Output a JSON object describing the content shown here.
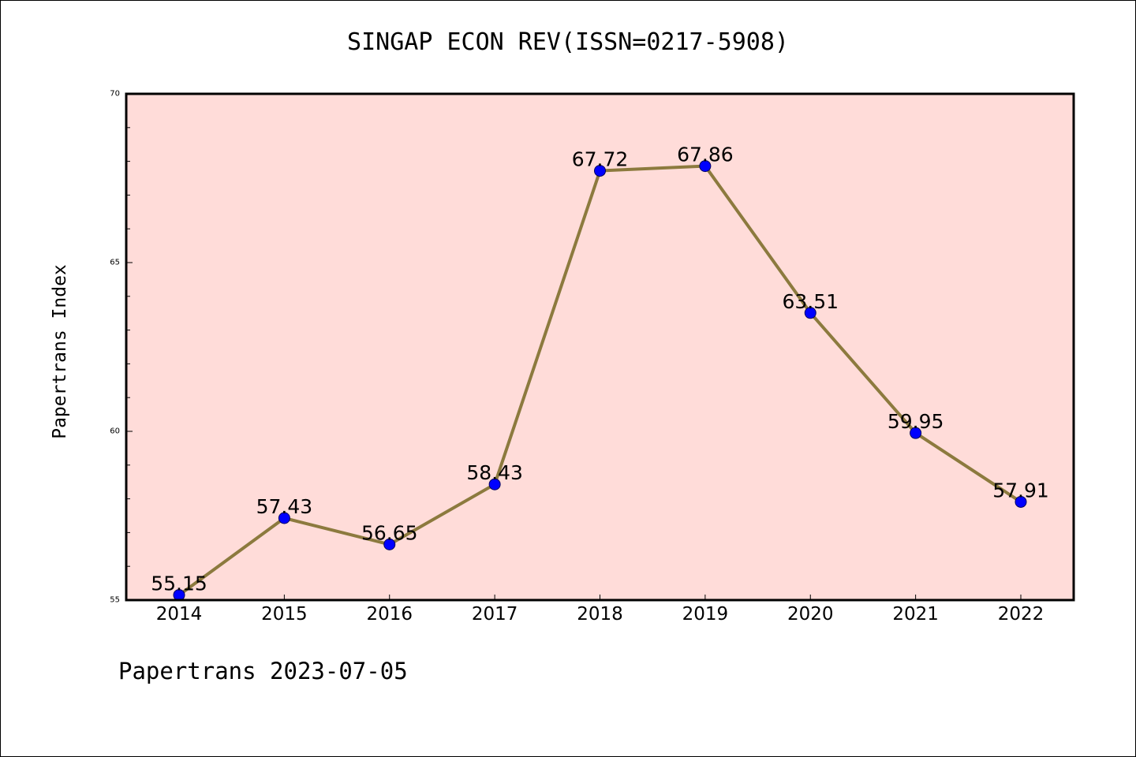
{
  "chart_data": {
    "type": "line",
    "title": "SINGAP ECON REV(ISSN=0217-5908)",
    "xlabel": "",
    "ylabel": "Papertrans Index",
    "categories": [
      "2014",
      "2015",
      "2016",
      "2017",
      "2018",
      "2019",
      "2020",
      "2021",
      "2022"
    ],
    "values": [
      55.15,
      57.43,
      56.65,
      58.43,
      67.72,
      67.86,
      63.51,
      59.95,
      57.91
    ],
    "data_labels": [
      "55.15",
      "57.43",
      "56.65",
      "58.43",
      "67.72",
      "67.86",
      "63.51",
      "59.95",
      "57.91"
    ],
    "ylim": [
      55,
      70
    ],
    "yticks": [
      "55",
      "60",
      "65",
      "70"
    ],
    "grid": false,
    "legend": "none",
    "colors": {
      "line": "#8c7a3e",
      "marker": "#0000ff",
      "plot_background": "#ffdcd9"
    }
  },
  "footer": {
    "text": "Papertrans 2023-07-05"
  }
}
